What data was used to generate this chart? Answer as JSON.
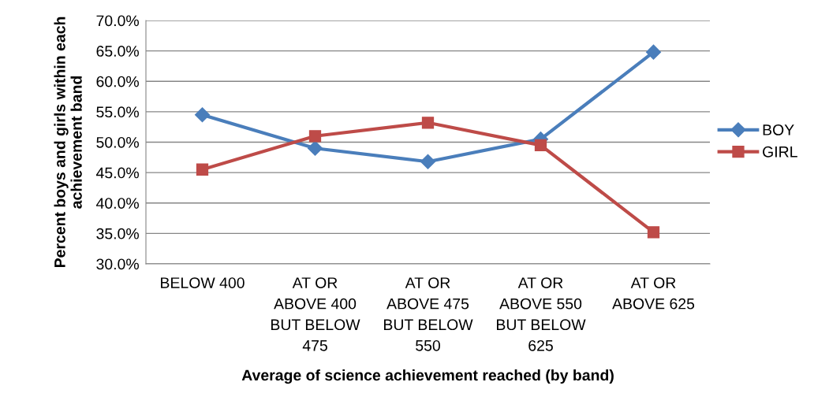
{
  "chart_data": {
    "type": "line",
    "xlabel": "Average of science achievement reached (by band)",
    "ylabel": "Percent boys and girls within each achievement band",
    "categories": [
      "BELOW 400",
      "AT OR\nABOVE 400\nBUT BELOW\n475",
      "AT OR\nABOVE 475\nBUT BELOW\n550",
      "AT OR\nABOVE 550\nBUT BELOW\n625",
      "AT OR\nABOVE 625"
    ],
    "series": [
      {
        "name": "BOY",
        "color": "#4a7ebb",
        "marker": "diamond",
        "values": [
          54.5,
          49.0,
          46.8,
          50.5,
          64.8
        ]
      },
      {
        "name": "GIRL",
        "color": "#be4b48",
        "marker": "square",
        "values": [
          45.5,
          51.0,
          53.2,
          49.5,
          35.2
        ]
      }
    ],
    "ylim": [
      30,
      70
    ],
    "yticks": [
      {
        "value": 30,
        "label": "30.0%"
      },
      {
        "value": 35,
        "label": "35.0%"
      },
      {
        "value": 40,
        "label": "40.0%"
      },
      {
        "value": 45,
        "label": "45.0%"
      },
      {
        "value": 50,
        "label": "50.0%"
      },
      {
        "value": 55,
        "label": "55.0%"
      },
      {
        "value": 60,
        "label": "60.0%"
      },
      {
        "value": 65,
        "label": "65.0%"
      },
      {
        "value": 70,
        "label": "70.0%"
      }
    ],
    "grid": "y",
    "legend": "right",
    "line_style": "solid"
  }
}
